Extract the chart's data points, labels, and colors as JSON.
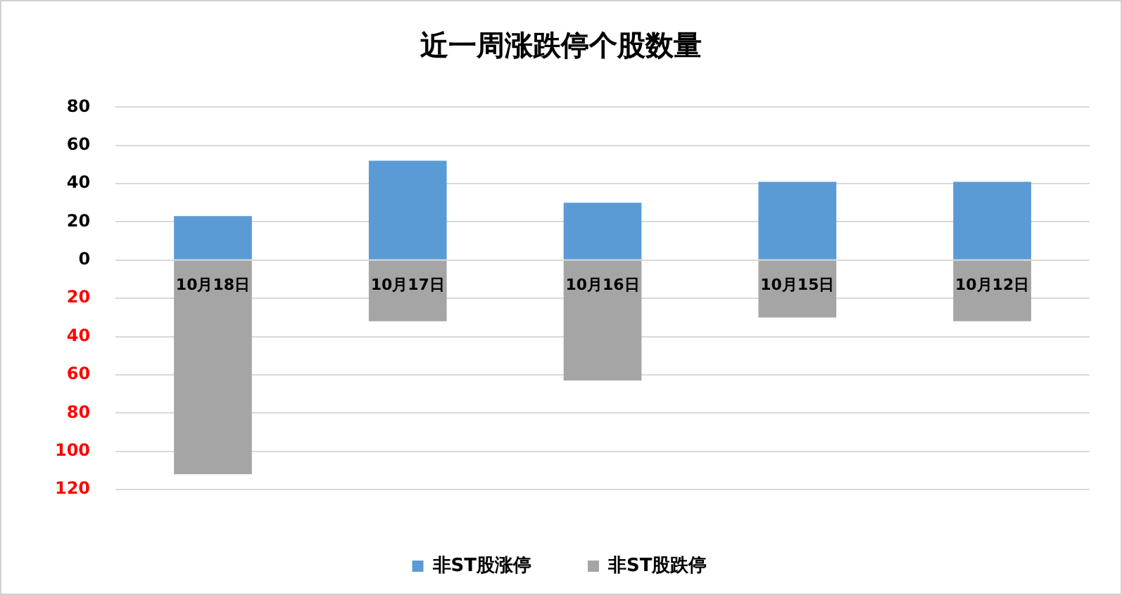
{
  "chart_data": {
    "type": "bar",
    "title": "近一周涨跌停个股数量",
    "categories": [
      "10月18日",
      "10月17日",
      "10月16日",
      "10月15日",
      "10月12日"
    ],
    "series": [
      {
        "name": "非ST股涨停",
        "color": "#5b9bd5",
        "values": [
          23,
          52,
          30,
          41,
          41
        ]
      },
      {
        "name": "非ST股跌停",
        "color": "#a5a5a5",
        "values": [
          -112,
          -32,
          -63,
          -30,
          -32
        ]
      }
    ],
    "stacked": true,
    "ylim": [
      -120,
      80
    ],
    "yticks": [
      80,
      60,
      40,
      20,
      0,
      {
        "value": -20,
        "label": "20"
      },
      {
        "value": -40,
        "label": "40"
      },
      {
        "value": -60,
        "label": "60"
      },
      {
        "value": -80,
        "label": "80"
      },
      {
        "value": -100,
        "label": "100"
      },
      {
        "value": -120,
        "label": "120"
      }
    ],
    "grid": "y",
    "legend": "bottom"
  }
}
